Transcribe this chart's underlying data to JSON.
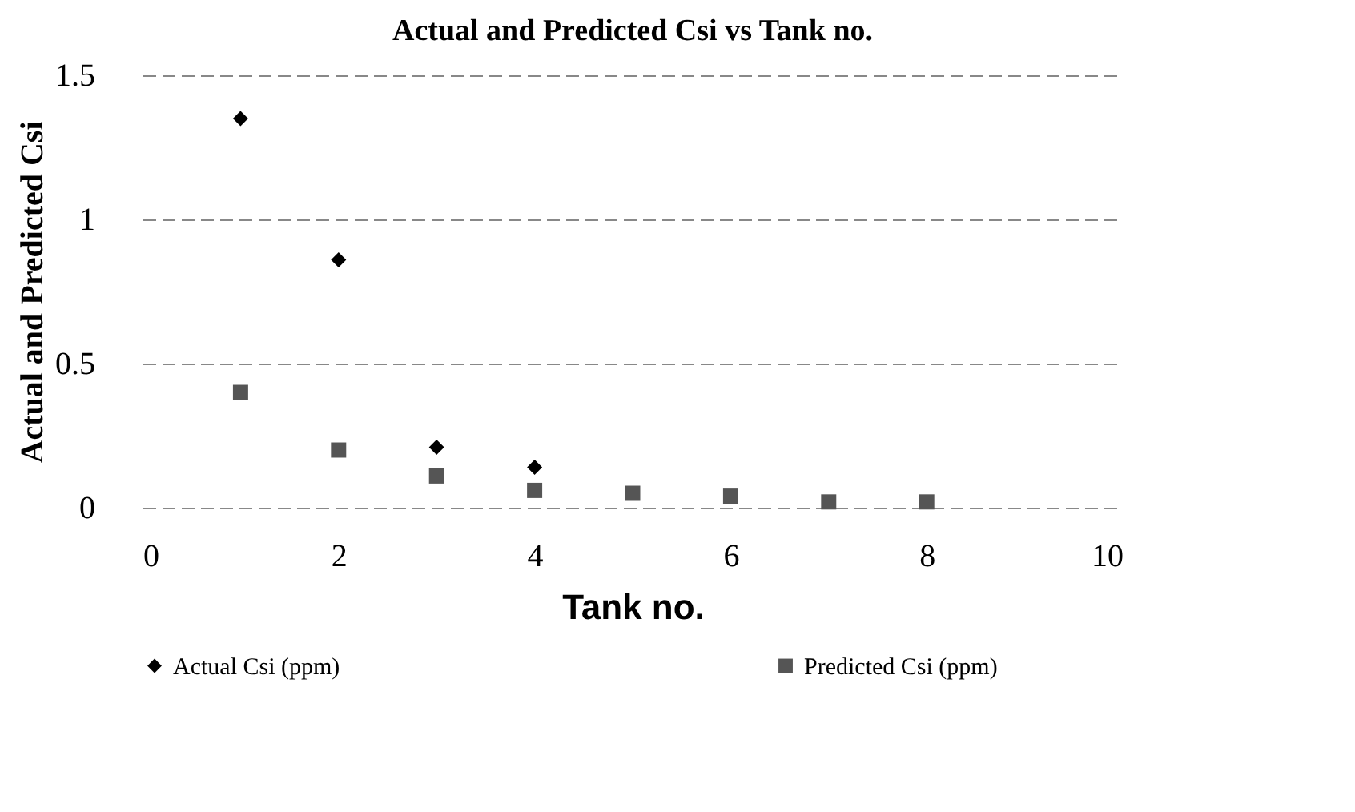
{
  "chart_data": {
    "type": "scatter",
    "title": "Actual and Predicted Csi vs Tank no.",
    "xlabel": "Tank no.",
    "ylabel": "Actual and Predicted Csi",
    "x": [
      1,
      2,
      3,
      4,
      5,
      6,
      7,
      8
    ],
    "series": [
      {
        "name": "Actual Csi (ppm)",
        "color": "#000000",
        "marker": "diamond",
        "values": [
          1.35,
          0.86,
          0.21,
          0.14,
          null,
          null,
          null,
          null
        ]
      },
      {
        "name": "Predicted Csi (ppm)",
        "color": "#555555",
        "marker": "square",
        "values": [
          0.4,
          0.2,
          0.11,
          0.06,
          0.05,
          0.04,
          0.02,
          0.02
        ]
      }
    ],
    "xlim": [
      0,
      10
    ],
    "xticks": [
      0,
      2,
      4,
      6,
      8,
      10
    ],
    "ylim": [
      0,
      1.5
    ],
    "yticks": [
      0,
      0.5,
      1,
      1.5
    ],
    "grid": "y",
    "legend": "bottom"
  }
}
